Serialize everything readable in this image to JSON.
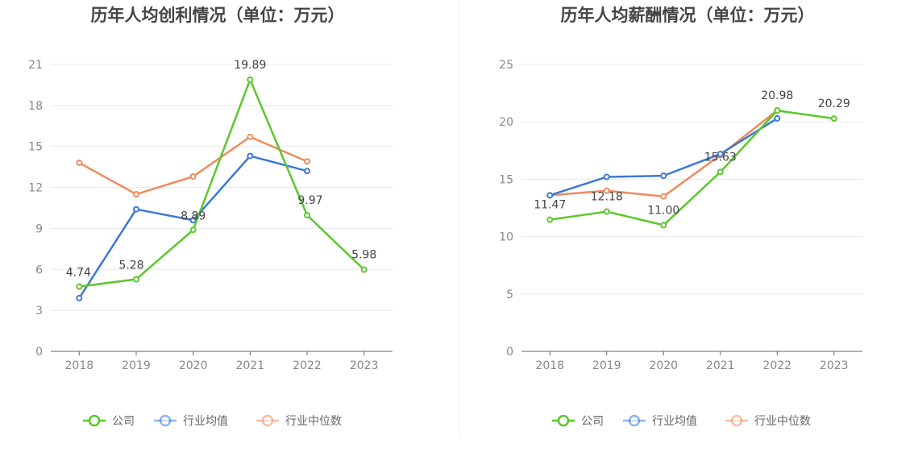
{
  "colors": {
    "company": "#5bc72b",
    "industry_avg": "#3c78d8",
    "industry_median": "#f08a5d",
    "grid": "#e6e8ee",
    "axis": "#666666"
  },
  "legend": [
    "公司",
    "行业均值",
    "行业中位数"
  ],
  "chart_data": [
    {
      "type": "line",
      "title": "历年人均创利情况（单位：万元）",
      "categories": [
        "2018",
        "2019",
        "2020",
        "2021",
        "2022",
        "2023"
      ],
      "ylim": [
        0,
        21
      ],
      "yticks": [
        0,
        3,
        6,
        9,
        12,
        15,
        18,
        21
      ],
      "series": [
        {
          "name": "公司",
          "values": [
            4.74,
            5.28,
            8.89,
            19.89,
            9.97,
            5.98
          ],
          "labels": [
            "4.74",
            "5.28",
            "8.89",
            "19.89",
            "9.97",
            "5.98"
          ]
        },
        {
          "name": "行业均值",
          "values": [
            3.9,
            10.4,
            9.6,
            14.3,
            13.2,
            null
          ]
        },
        {
          "name": "行业中位数",
          "values": [
            13.8,
            11.5,
            12.8,
            15.7,
            13.9,
            null
          ]
        }
      ]
    },
    {
      "type": "line",
      "title": "历年人均薪酬情况（单位：万元）",
      "categories": [
        "2018",
        "2019",
        "2020",
        "2021",
        "2022",
        "2023"
      ],
      "ylim": [
        0,
        25
      ],
      "yticks": [
        0,
        5,
        10,
        15,
        20,
        25
      ],
      "series": [
        {
          "name": "公司",
          "values": [
            11.47,
            12.18,
            11.0,
            15.63,
            20.98,
            20.29
          ],
          "labels": [
            "11.47",
            "12.18",
            "11.00",
            "15.63",
            "20.98",
            "20.29"
          ]
        },
        {
          "name": "行业均值",
          "values": [
            13.6,
            15.2,
            15.3,
            17.2,
            20.3,
            null
          ]
        },
        {
          "name": "行业中位数",
          "values": [
            13.6,
            14.0,
            13.5,
            17.1,
            21.0,
            null
          ]
        }
      ]
    }
  ]
}
